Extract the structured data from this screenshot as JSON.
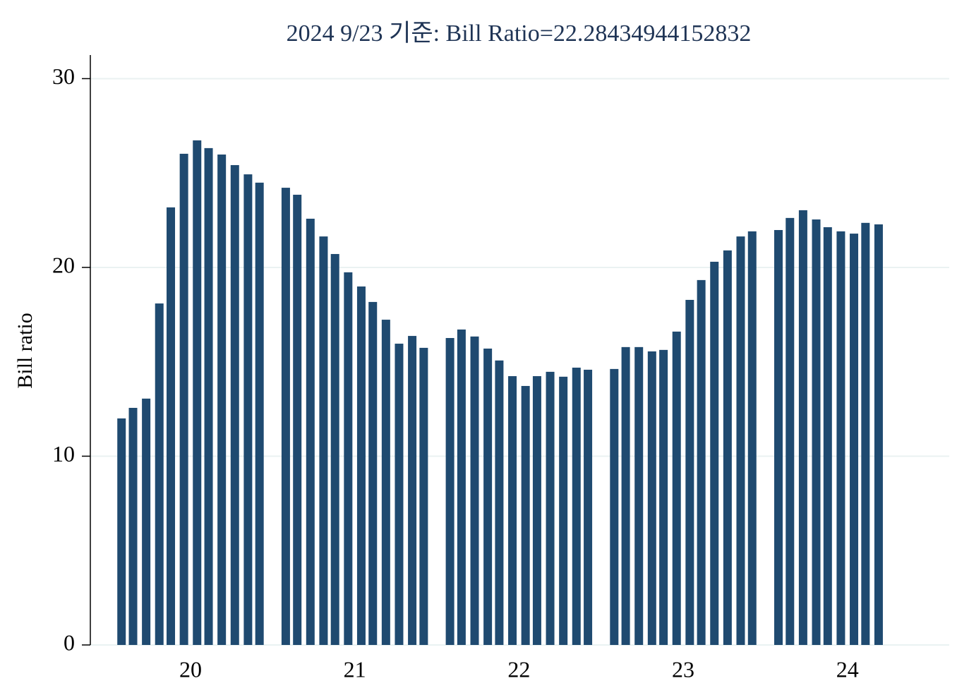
{
  "chart_data": {
    "type": "bar",
    "title": "2024 9/23 기준: Bill Ratio=22.28434944152832",
    "y_label": "Bill ratio",
    "color": "#1f4a70",
    "x": [
      19.58,
      19.65,
      19.73,
      19.81,
      19.88,
      19.96,
      20.04,
      20.11,
      20.19,
      20.27,
      20.35,
      20.42,
      20.58,
      20.65,
      20.73,
      20.81,
      20.88,
      20.96,
      21.04,
      21.11,
      21.19,
      21.27,
      21.35,
      21.42,
      21.58,
      21.65,
      21.73,
      21.81,
      21.88,
      21.96,
      22.04,
      22.11,
      22.19,
      22.27,
      22.35,
      22.42,
      22.58,
      22.65,
      22.73,
      22.81,
      22.88,
      22.96,
      23.04,
      23.11,
      23.19,
      23.27,
      23.35,
      23.42,
      23.58,
      23.65,
      23.73,
      23.81,
      23.88,
      23.96,
      24.04,
      24.11,
      24.19
    ],
    "values": [
      12.0,
      12.56,
      13.05,
      18.09,
      23.18,
      26.02,
      26.73,
      26.32,
      25.98,
      25.42,
      24.93,
      24.49,
      24.22,
      23.85,
      22.58,
      21.64,
      20.71,
      19.74,
      18.99,
      18.17,
      17.23,
      15.96,
      16.37,
      15.74,
      16.26,
      16.71,
      16.34,
      15.7,
      15.07,
      14.24,
      13.72,
      14.24,
      14.47,
      14.21,
      14.69,
      14.58,
      14.62,
      15.78,
      15.78,
      15.55,
      15.63,
      16.6,
      18.28,
      19.33,
      20.3,
      20.9,
      21.64,
      21.91,
      21.98,
      22.62,
      23.03,
      22.54,
      22.13,
      21.91,
      21.79,
      22.36,
      22.28
    ],
    "xlim": [
      19.39,
      24.62
    ],
    "xticks": [
      20,
      21,
      22,
      23,
      24
    ],
    "ylim": [
      0,
      31.25
    ],
    "yticks": [
      0,
      10,
      20,
      30
    ],
    "grid": true
  }
}
